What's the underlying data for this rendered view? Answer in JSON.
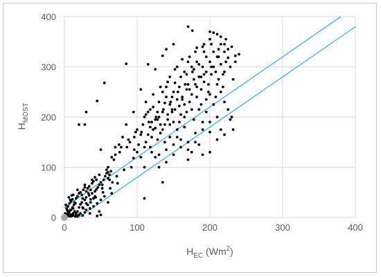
{
  "chart_data": {
    "type": "scatter",
    "xlabel": {
      "main": "H",
      "sub": "EC",
      "tail": " (Wm",
      "sup": "2",
      "end": ")"
    },
    "ylabel": {
      "main": "H",
      "sub": "MOST"
    },
    "xlim": [
      0,
      400
    ],
    "ylim": [
      0,
      400
    ],
    "xticks": [
      "0",
      "100",
      "200",
      "300",
      "400"
    ],
    "yticks": [
      "0",
      "100",
      "200",
      "300",
      "400"
    ],
    "grid": true,
    "colors": {
      "points": "#000000",
      "lines": "#1aa7e0",
      "grid": "#d9d9d9",
      "origin_marker": "#a6a6a6"
    },
    "reference_lines": [
      {
        "x": [
          0,
          380
        ],
        "y": [
          20,
          400
        ]
      },
      {
        "x": [
          20,
          400
        ],
        "y": [
          0,
          380
        ]
      }
    ],
    "origin_marker": {
      "x": 0,
      "y": 0
    },
    "points": [
      [
        2,
        3
      ],
      [
        3,
        6
      ],
      [
        4,
        2
      ],
      [
        5,
        10
      ],
      [
        6,
        4
      ],
      [
        7,
        12
      ],
      [
        8,
        6
      ],
      [
        9,
        15
      ],
      [
        10,
        3
      ],
      [
        11,
        20
      ],
      [
        12,
        8
      ],
      [
        13,
        25
      ],
      [
        14,
        12
      ],
      [
        15,
        2
      ],
      [
        3,
        18
      ],
      [
        5,
        22
      ],
      [
        7,
        28
      ],
      [
        9,
        32
      ],
      [
        11,
        36
      ],
      [
        6,
        40
      ],
      [
        8,
        15
      ],
      [
        10,
        44
      ],
      [
        12,
        18
      ],
      [
        14,
        30
      ],
      [
        16,
        38
      ],
      [
        18,
        42
      ],
      [
        20,
        48
      ],
      [
        22,
        50
      ],
      [
        24,
        45
      ],
      [
        26,
        55
      ],
      [
        28,
        60
      ],
      [
        30,
        52
      ],
      [
        32,
        58
      ],
      [
        34,
        62
      ],
      [
        36,
        55
      ],
      [
        38,
        68
      ],
      [
        40,
        72
      ],
      [
        42,
        80
      ],
      [
        44,
        75
      ],
      [
        16,
        8
      ],
      [
        18,
        12
      ],
      [
        20,
        20
      ],
      [
        22,
        26
      ],
      [
        24,
        30
      ],
      [
        26,
        18
      ],
      [
        28,
        35
      ],
      [
        30,
        40
      ],
      [
        32,
        25
      ],
      [
        34,
        44
      ],
      [
        36,
        30
      ],
      [
        38,
        48
      ],
      [
        40,
        38
      ],
      [
        42,
        52
      ],
      [
        44,
        56
      ],
      [
        46,
        60
      ],
      [
        48,
        65
      ],
      [
        50,
        70
      ],
      [
        52,
        58
      ],
      [
        54,
        75
      ],
      [
        56,
        82
      ],
      [
        58,
        88
      ],
      [
        60,
        78
      ],
      [
        62,
        85
      ],
      [
        64,
        92
      ],
      [
        66,
        70
      ],
      [
        18,
        2
      ],
      [
        20,
        5
      ],
      [
        22,
        8
      ],
      [
        25,
        4
      ],
      [
        28,
        10
      ],
      [
        30,
        15
      ],
      [
        35,
        18
      ],
      [
        40,
        22
      ],
      [
        45,
        28
      ],
      [
        50,
        35
      ],
      [
        55,
        42
      ],
      [
        60,
        30
      ],
      [
        65,
        48
      ],
      [
        20,
        185
      ],
      [
        28,
        185
      ],
      [
        45,
        232
      ],
      [
        30,
        210
      ],
      [
        50,
        135
      ],
      [
        55,
        268
      ],
      [
        60,
        90
      ],
      [
        70,
        125
      ],
      [
        75,
        145
      ],
      [
        85,
        306
      ],
      [
        90,
        150
      ],
      [
        95,
        118
      ],
      [
        100,
        130
      ],
      [
        100,
        175
      ],
      [
        105,
        165
      ],
      [
        110,
        200
      ],
      [
        110,
        140
      ],
      [
        112,
        205
      ],
      [
        115,
        210
      ],
      [
        118,
        180
      ],
      [
        120,
        190
      ],
      [
        120,
        160
      ],
      [
        122,
        220
      ],
      [
        125,
        178
      ],
      [
        128,
        195
      ],
      [
        130,
        200
      ],
      [
        130,
        230
      ],
      [
        132,
        168
      ],
      [
        135,
        250
      ],
      [
        135,
        210
      ],
      [
        138,
        185
      ],
      [
        140,
        240
      ],
      [
        140,
        260
      ],
      [
        142,
        195
      ],
      [
        145,
        225
      ],
      [
        145,
        280
      ],
      [
        148,
        215
      ],
      [
        150,
        250
      ],
      [
        150,
        190
      ],
      [
        152,
        268
      ],
      [
        155,
        235
      ],
      [
        155,
        300
      ],
      [
        158,
        222
      ],
      [
        160,
        280
      ],
      [
        160,
        205
      ],
      [
        162,
        240
      ],
      [
        165,
        290
      ],
      [
        165,
        225
      ],
      [
        168,
        255
      ],
      [
        170,
        310
      ],
      [
        170,
        265
      ],
      [
        172,
        230
      ],
      [
        175,
        300
      ],
      [
        175,
        245
      ],
      [
        178,
        275
      ],
      [
        180,
        330
      ],
      [
        180,
        265
      ],
      [
        182,
        240
      ],
      [
        185,
        305
      ],
      [
        185,
        280
      ],
      [
        188,
        255
      ],
      [
        190,
        340
      ],
      [
        190,
        300
      ],
      [
        192,
        270
      ],
      [
        195,
        320
      ],
      [
        195,
        290
      ],
      [
        198,
        250
      ],
      [
        200,
        355
      ],
      [
        200,
        310
      ],
      [
        202,
        285
      ],
      [
        205,
        330
      ],
      [
        205,
        300
      ],
      [
        208,
        240
      ],
      [
        210,
        365
      ],
      [
        210,
        320
      ],
      [
        212,
        275
      ],
      [
        215,
        345
      ],
      [
        215,
        305
      ],
      [
        218,
        260
      ],
      [
        220,
        330
      ],
      [
        220,
        290
      ],
      [
        222,
        355
      ],
      [
        225,
        318
      ],
      [
        228,
        300
      ],
      [
        230,
        340
      ],
      [
        232,
        275
      ],
      [
        235,
        310
      ],
      [
        240,
        325
      ],
      [
        170,
        380
      ],
      [
        176,
        372
      ],
      [
        150,
        345
      ],
      [
        140,
        335
      ],
      [
        135,
        322
      ],
      [
        125,
        295
      ],
      [
        115,
        305
      ],
      [
        105,
        255
      ],
      [
        95,
        210
      ],
      [
        85,
        185
      ],
      [
        80,
        160
      ],
      [
        70,
        140
      ],
      [
        65,
        120
      ],
      [
        60,
        100
      ],
      [
        135,
        70
      ],
      [
        130,
        100
      ],
      [
        125,
        120
      ],
      [
        120,
        130
      ],
      [
        140,
        110
      ],
      [
        150,
        125
      ],
      [
        160,
        140
      ],
      [
        170,
        150
      ],
      [
        180,
        168
      ],
      [
        190,
        190
      ],
      [
        200,
        170
      ],
      [
        210,
        200
      ],
      [
        215,
        175
      ],
      [
        220,
        230
      ],
      [
        225,
        215
      ],
      [
        228,
        195
      ],
      [
        232,
        175
      ],
      [
        170,
        115
      ],
      [
        175,
        130
      ],
      [
        165,
        200
      ],
      [
        155,
        175
      ],
      [
        145,
        160
      ],
      [
        138,
        150
      ],
      [
        128,
        155
      ],
      [
        118,
        140
      ],
      [
        110,
        38
      ],
      [
        105,
        120
      ],
      [
        185,
        145
      ],
      [
        195,
        210
      ],
      [
        205,
        225
      ],
      [
        215,
        250
      ],
      [
        188,
        225
      ],
      [
        178,
        195
      ],
      [
        168,
        210
      ],
      [
        158,
        190
      ],
      [
        148,
        210
      ],
      [
        200,
        245
      ],
      [
        210,
        265
      ],
      [
        195,
        235
      ],
      [
        185,
        215
      ],
      [
        175,
        215
      ],
      [
        165,
        180
      ],
      [
        155,
        160
      ],
      [
        145,
        185
      ],
      [
        135,
        175
      ],
      [
        125,
        195
      ],
      [
        115,
        165
      ],
      [
        112,
        230
      ],
      [
        122,
        245
      ],
      [
        132,
        260
      ],
      [
        142,
        270
      ],
      [
        152,
        295
      ],
      [
        162,
        315
      ],
      [
        172,
        320
      ],
      [
        182,
        338
      ],
      [
        192,
        330
      ],
      [
        202,
        345
      ],
      [
        212,
        335
      ],
      [
        222,
        310
      ],
      [
        218,
        285
      ],
      [
        208,
        290
      ],
      [
        198,
        265
      ],
      [
        188,
        280
      ],
      [
        178,
        295
      ],
      [
        168,
        285
      ],
      [
        158,
        260
      ],
      [
        148,
        240
      ],
      [
        138,
        228
      ],
      [
        128,
        210
      ],
      [
        118,
        215
      ],
      [
        108,
        185
      ],
      [
        98,
        170
      ],
      [
        88,
        155
      ],
      [
        78,
        140
      ],
      [
        68,
        115
      ],
      [
        58,
        95
      ],
      [
        48,
        85
      ],
      [
        38,
        75
      ],
      [
        28,
        65
      ],
      [
        18,
        55
      ],
      [
        12,
        45
      ],
      [
        8,
        35
      ],
      [
        25,
        38
      ],
      [
        33,
        48
      ],
      [
        43,
        40
      ],
      [
        53,
        50
      ],
      [
        63,
        58
      ],
      [
        73,
        68
      ],
      [
        48,
        12
      ],
      [
        35,
        8
      ],
      [
        25,
        20
      ],
      [
        15,
        28
      ],
      [
        10,
        5
      ],
      [
        6,
        8
      ],
      [
        4,
        14
      ],
      [
        2,
        25
      ],
      [
        1,
        8
      ],
      [
        3,
        1
      ],
      [
        8,
        2
      ],
      [
        12,
        4
      ],
      [
        16,
        6
      ],
      [
        50,
        5
      ],
      [
        45,
        3
      ],
      [
        30,
        28
      ],
      [
        36,
        36
      ],
      [
        42,
        42
      ],
      [
        52,
        65
      ],
      [
        62,
        75
      ],
      [
        72,
        82
      ],
      [
        82,
        95
      ],
      [
        92,
        100
      ],
      [
        110,
        100
      ],
      [
        102,
        145
      ],
      [
        96,
        135
      ],
      [
        112,
        150
      ],
      [
        122,
        175
      ],
      [
        132,
        185
      ],
      [
        142,
        205
      ],
      [
        152,
        215
      ],
      [
        162,
        235
      ],
      [
        172,
        255
      ],
      [
        182,
        260
      ],
      [
        192,
        285
      ],
      [
        202,
        300
      ],
      [
        212,
        320
      ],
      [
        220,
        345
      ],
      [
        200,
        370
      ],
      [
        205,
        368
      ],
      [
        215,
        360
      ],
      [
        225,
        335
      ],
      [
        235,
        322
      ],
      [
        192,
        345
      ],
      [
        182,
        310
      ],
      [
        176,
        290
      ],
      [
        166,
        265
      ],
      [
        156,
        250
      ],
      [
        146,
        230
      ],
      [
        136,
        215
      ],
      [
        126,
        200
      ],
      [
        116,
        190
      ],
      [
        106,
        170
      ],
      [
        96,
        160
      ],
      [
        86,
        140
      ],
      [
        76,
        130
      ],
      [
        170,
        135
      ],
      [
        180,
        150
      ],
      [
        190,
        175
      ],
      [
        200,
        190
      ],
      [
        160,
        155
      ],
      [
        150,
        145
      ],
      [
        140,
        135
      ],
      [
        130,
        125
      ],
      [
        200,
        130
      ],
      [
        190,
        125
      ],
      [
        210,
        155
      ],
      [
        220,
        165
      ],
      [
        230,
        200
      ]
    ]
  }
}
